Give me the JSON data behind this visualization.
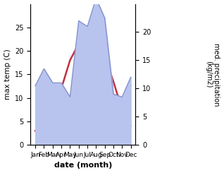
{
  "months": [
    "Jan",
    "Feb",
    "Mar",
    "Apr",
    "May",
    "Jun",
    "Jul",
    "Aug",
    "Sep",
    "Oct",
    "Nov",
    "Dec"
  ],
  "temp_max": [
    3.0,
    4.5,
    7.0,
    12.0,
    18.0,
    21.5,
    24.0,
    23.5,
    19.0,
    13.5,
    7.5,
    4.0
  ],
  "precipitation": [
    10.5,
    13.5,
    11.0,
    11.0,
    8.5,
    22.0,
    21.0,
    26.0,
    22.5,
    9.0,
    8.5,
    12.0
  ],
  "temp_color": "#c03040",
  "precip_color_fill": "#b8c4ee",
  "precip_color_line": "#8892cc",
  "bg_color": "#ffffff",
  "xlabel": "date (month)",
  "ylabel_left": "max temp (C)",
  "ylabel_right": "med. precipitation\n(kg/m2)",
  "ylim_left": [
    0,
    30
  ],
  "ylim_right": [
    0,
    25
  ],
  "yticks_left": [
    0,
    5,
    10,
    15,
    20,
    25
  ],
  "yticks_right": [
    0,
    5,
    10,
    15,
    20
  ],
  "precip_scale_factor": 1.25
}
